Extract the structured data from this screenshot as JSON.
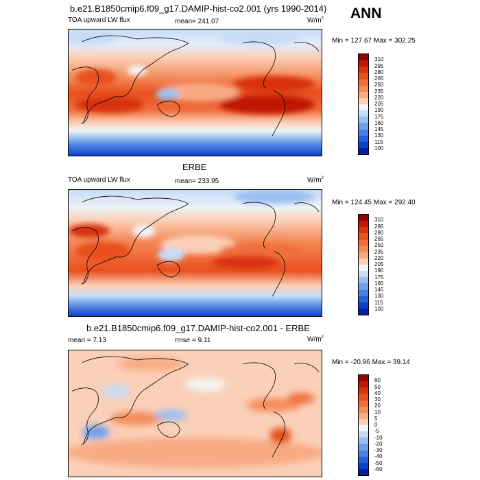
{
  "season": "ANN",
  "panels": [
    {
      "title": "b.e21.B1850cmip6.f09_g17.DAMIP-hist-co2.001 (yrs 1990-2014)",
      "left_label": "TOA upward LW flux",
      "center_label": "mean= 241.07",
      "units": "W/m",
      "units_sup": "2",
      "minmax": "Min = 127.67 Max = 302.25",
      "colorbar_labels": [
        "310",
        "295",
        "280",
        "265",
        "250",
        "235",
        "220",
        "205",
        "190",
        "175",
        "160",
        "145",
        "130",
        "115",
        "100"
      ],
      "colorbar_colors": [
        "#960000",
        "#c01806",
        "#d8320f",
        "#e8501e",
        "#f06e3c",
        "#f48c5a",
        "#f8aa82",
        "#fbd0b8",
        "#f4f4f4",
        "#c6dcf6",
        "#9ac0f0",
        "#6ea0ea",
        "#4a80e4",
        "#2a60d8",
        "#0e40c8",
        "#02209e"
      ]
    },
    {
      "title": "ERBE",
      "left_label": "TOA upward LW flux",
      "center_label": "mean= 233.95",
      "units": "W/m",
      "units_sup": "2",
      "minmax": "Min = 124.45 Max = 292.40",
      "colorbar_labels": [
        "310",
        "295",
        "280",
        "265",
        "250",
        "235",
        "220",
        "205",
        "190",
        "175",
        "160",
        "145",
        "130",
        "115",
        "100"
      ],
      "colorbar_colors": [
        "#960000",
        "#c01806",
        "#d8320f",
        "#e8501e",
        "#f06e3c",
        "#f48c5a",
        "#f8aa82",
        "#fbd0b8",
        "#f4f4f4",
        "#c6dcf6",
        "#9ac0f0",
        "#6ea0ea",
        "#4a80e4",
        "#2a60d8",
        "#0e40c8",
        "#02209e"
      ]
    },
    {
      "title": "b.e21.B1850cmip6.f09_g17.DAMIP-hist-co2.001 - ERBE",
      "left_label": "mean =  7.13",
      "center_label": "rmse =  9.11",
      "units": "W/m",
      "units_sup": "2",
      "minmax": "Min = -20.96 Max = 39.14",
      "colorbar_labels": [
        "60",
        "50",
        "40",
        "30",
        "20",
        "10",
        "5",
        "0",
        "-5",
        "-10",
        "-20",
        "-30",
        "-40",
        "-50",
        "-60"
      ],
      "colorbar_colors": [
        "#960000",
        "#c01806",
        "#d8320f",
        "#e8501e",
        "#f06e3c",
        "#f48c5a",
        "#f8aa82",
        "#fbd0b8",
        "#f4f4f4",
        "#c6dcf6",
        "#9ac0f0",
        "#6ea0ea",
        "#4a80e4",
        "#2a60d8",
        "#0e40c8",
        "#02209e"
      ]
    }
  ]
}
